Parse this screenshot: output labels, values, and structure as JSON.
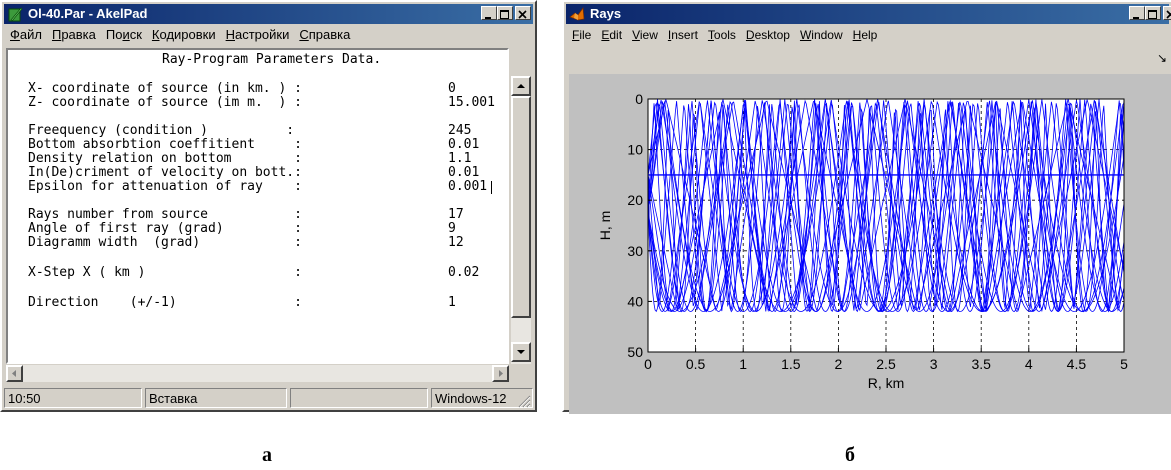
{
  "akelpad": {
    "title": "Ol-40.Par - AkelPad",
    "menu": [
      {
        "label": "Файл",
        "underline": 0
      },
      {
        "label": "Правка",
        "underline": 0
      },
      {
        "label": "Поиск",
        "underline": 2
      },
      {
        "label": "Кодировки",
        "underline": 0
      },
      {
        "label": "Настройки",
        "underline": 0
      },
      {
        "label": "Справка",
        "underline": 0
      }
    ],
    "header_line": "Ray-Program Parameters Data.",
    "params": [
      {
        "label": "X- coordinate of source (in km. ) :",
        "value": "0"
      },
      {
        "label": "Z- coordinate of source (im m.  ) :",
        "value": "15.001"
      },
      {
        "label": "Freequency (condition )          :",
        "value": "245"
      },
      {
        "label": "Bottom absorbtion coeffitient     :",
        "value": "0.01"
      },
      {
        "label": "Density relation on bottom        :",
        "value": "1.1"
      },
      {
        "label": "In(De)criment of velocity on bott.:",
        "value": "0.01"
      },
      {
        "label": "Epsilon for attenuation of ray    :",
        "value": "0.001"
      },
      {
        "label": "Rays number from source           :",
        "value": "17"
      },
      {
        "label": "Angle of first ray (grad)         :",
        "value": "9"
      },
      {
        "label": "Diagramm width  (grad)            :",
        "value": "12"
      },
      {
        "label": "X-Step X ( km )                   :",
        "value": "0.02"
      },
      {
        "label": "Direction    (+/-1)               :",
        "value": "1"
      }
    ],
    "status": {
      "time": "10:50",
      "mode": "Вставка",
      "blank": "",
      "encoding": "Windows-12"
    }
  },
  "rays": {
    "title": "Rays",
    "menu": [
      {
        "label": "File",
        "underline": 0
      },
      {
        "label": "Edit",
        "underline": 0
      },
      {
        "label": "View",
        "underline": 0
      },
      {
        "label": "Insert",
        "underline": 0
      },
      {
        "label": "Tools",
        "underline": 0
      },
      {
        "label": "Desktop",
        "underline": 0
      },
      {
        "label": "Window",
        "underline": 0
      },
      {
        "label": "Help",
        "underline": 0
      }
    ],
    "toolbar_glyph": "↘"
  },
  "chart_data": {
    "type": "line",
    "title": "",
    "xlabel": "R, km",
    "ylabel": "H, m",
    "xlim": [
      0,
      5
    ],
    "ylim": [
      50,
      0
    ],
    "y_inverted": true,
    "xticks": [
      "0",
      "0.5",
      "1",
      "1.5",
      "2",
      "2.5",
      "3",
      "3.5",
      "4",
      "4.5",
      "5"
    ],
    "yticks": [
      "0",
      "10",
      "20",
      "30",
      "40",
      "50"
    ],
    "grid": true,
    "line_color": "#0000ff",
    "source_depth": 15,
    "water_surface": 0,
    "bottom_depth": 42,
    "series_count": 17,
    "description": "ray paths from source at R=0, H=15 bouncing between surface and bottom"
  },
  "captions": {
    "left": "а",
    "right": "б"
  }
}
